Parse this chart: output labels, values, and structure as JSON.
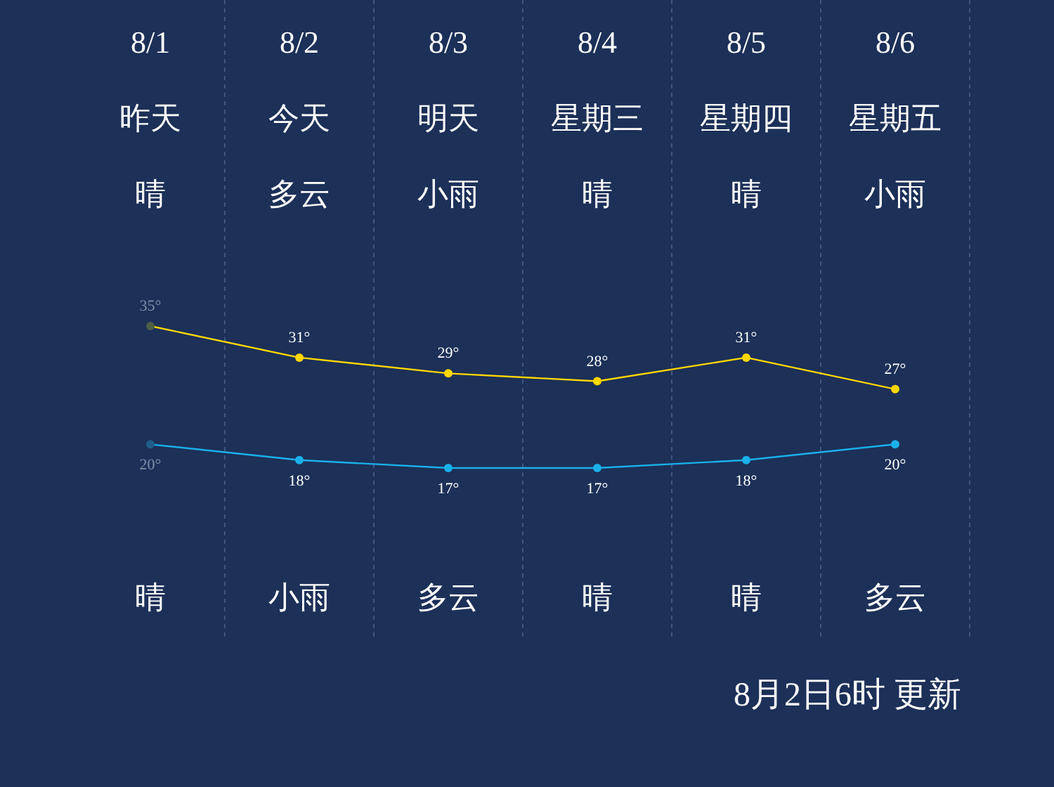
{
  "chart_data": {
    "type": "line",
    "categories": [
      "8/1",
      "8/2",
      "8/3",
      "8/4",
      "8/5",
      "8/6"
    ],
    "series": [
      {
        "color": "#ffd700",
        "colors": [
          "#4d5e4a",
          "#ffd700",
          "#ffd700",
          "#ffd700",
          "#ffd700",
          "#ffd700"
        ],
        "values": [
          35,
          31,
          29,
          28,
          31,
          27
        ],
        "value_labels": [
          "35°",
          "31°",
          "29°",
          "28°",
          "31°",
          "27°"
        ]
      },
      {
        "color": "#1ab0ea",
        "colors": [
          "#1f5c8a",
          "#1ab0ea",
          "#1ab0ea",
          "#1ab0ea",
          "#1ab0ea",
          "#1ab0ea"
        ],
        "values": [
          20,
          18,
          17,
          17,
          18,
          20
        ],
        "value_labels": [
          "20°",
          "18°",
          "17°",
          "17°",
          "18°",
          "20°"
        ]
      }
    ],
    "grid": "x",
    "marker": "circle",
    "annotations": [
      "昨天",
      "今天",
      "明天",
      "星期三",
      "星期四",
      "星期五",
      "晴",
      "多云",
      "小雨",
      "晴",
      "晴",
      "小雨",
      "晴",
      "小雨",
      "多云",
      "晴",
      "晴",
      "多云",
      "8月2日6时 更新"
    ]
  }
}
